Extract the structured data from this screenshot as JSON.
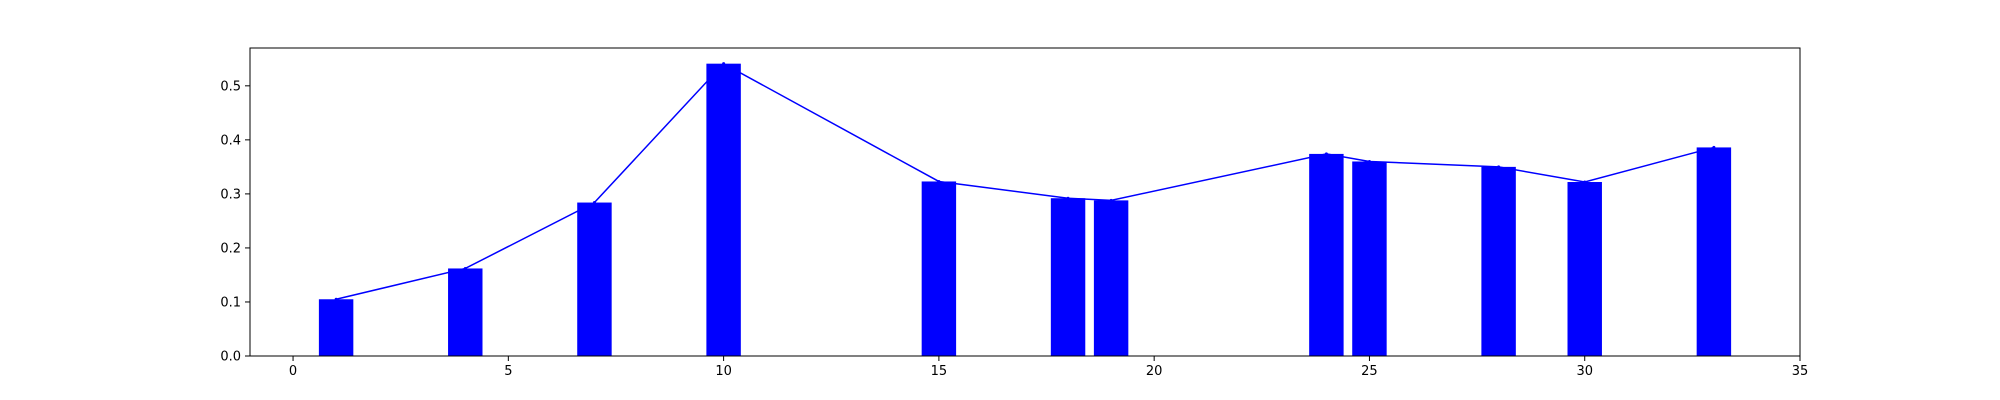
{
  "chart_data": {
    "type": "bar",
    "title": "",
    "xlabel": "",
    "ylabel": "",
    "xlim": [
      -1,
      35
    ],
    "ylim": [
      0,
      0.57
    ],
    "grid": false,
    "bar_color": "#0000ff",
    "line_color": "#0000ff",
    "bar_width": 0.8,
    "x": [
      1,
      4,
      7,
      10,
      15,
      18,
      19,
      24,
      25,
      28,
      30,
      33
    ],
    "values": [
      0.105,
      0.162,
      0.284,
      0.541,
      0.323,
      0.292,
      0.288,
      0.374,
      0.36,
      0.35,
      0.322,
      0.386
    ],
    "x_ticks": [
      0,
      5,
      10,
      15,
      20,
      25,
      30,
      35
    ],
    "y_ticks": [
      0.0,
      0.1,
      0.2,
      0.3,
      0.4,
      0.5
    ],
    "x_tick_labels": [
      "0",
      "5",
      "10",
      "15",
      "20",
      "25",
      "30",
      "35"
    ],
    "y_tick_labels": [
      "0.0",
      "0.1",
      "0.2",
      "0.3",
      "0.4",
      "0.5"
    ]
  }
}
